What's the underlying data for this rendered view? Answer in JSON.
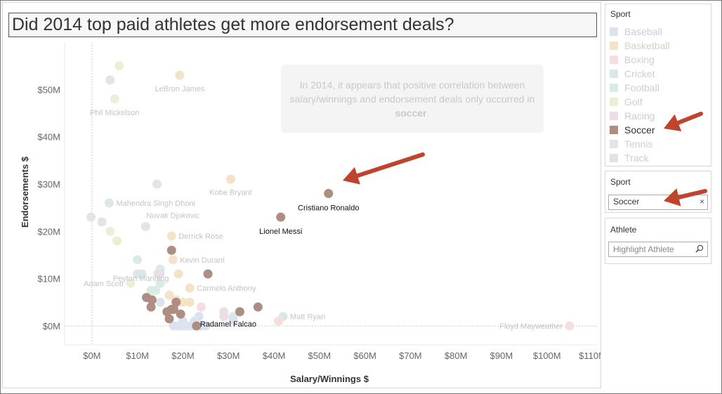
{
  "title": "Did 2014 top paid athletes get more endorsement deals?",
  "annotation": {
    "pre": "In 2014, it appears that positive correlation between salary/winnings and endorsement deals only occurred in ",
    "highlight": "soccer",
    "post": "."
  },
  "sport_legend": {
    "title": "Sport",
    "items": [
      {
        "label": "Baseball",
        "color": "#dce3ef",
        "text_color": "#c9ced6"
      },
      {
        "label": "Basketball",
        "color": "#f5e3c9",
        "text_color": "#d6d0c2"
      },
      {
        "label": "Boxing",
        "color": "#f6dede",
        "text_color": "#d6cccc"
      },
      {
        "label": "Cricket",
        "color": "#dde6e9",
        "text_color": "#c9d0d3"
      },
      {
        "label": "Football",
        "color": "#d8ebe4",
        "text_color": "#c6d3ce"
      },
      {
        "label": "Golf",
        "color": "#eaefd5",
        "text_color": "#cfd2c2"
      },
      {
        "label": "Racing",
        "color": "#ecdfe3",
        "text_color": "#d2c9cc"
      },
      {
        "label": "Soccer",
        "color": "#ae8d82",
        "text_color": "#333333"
      },
      {
        "label": "Tennis",
        "color": "#e6e3e2",
        "text_color": "#cfcfcf"
      },
      {
        "label": "Track",
        "color": "#e2e2e2",
        "text_color": "#cfcfcf"
      }
    ]
  },
  "sport_filter": {
    "title": "Sport",
    "value": "Soccer",
    "clear": "×"
  },
  "athlete_filter": {
    "title": "Athlete",
    "placeholder": "Highlight Athlete"
  },
  "arrow_color": "#c0432b",
  "chart_data": {
    "type": "scatter",
    "xlabel": "Salary/Winnings $",
    "ylabel": "Endorsements $",
    "xlim": [
      -6,
      111
    ],
    "ylim": [
      -4,
      60
    ],
    "x_ticks": [
      0,
      10,
      20,
      30,
      40,
      50,
      60,
      70,
      80,
      90,
      100,
      110
    ],
    "x_tick_labels": [
      "$0M",
      "$10M",
      "$20M",
      "$30M",
      "$40M",
      "$50M",
      "$60M",
      "$70M",
      "$80M",
      "$90M",
      "$100M",
      "$110M"
    ],
    "y_ticks": [
      0,
      10,
      20,
      30,
      40,
      50
    ],
    "y_tick_labels": [
      "$0M",
      "$10M",
      "$20M",
      "$30M",
      "$40M",
      "$50M"
    ],
    "highlight_color": "#ae8d82",
    "points": [
      {
        "x": 6.0,
        "y": 55.0,
        "sport": "Golf"
      },
      {
        "x": 4.0,
        "y": 52.0,
        "sport": "Tennis"
      },
      {
        "x": 19.3,
        "y": 53.0,
        "sport": "Basketball",
        "label": "LeBron James"
      },
      {
        "x": 5.0,
        "y": 48.0,
        "sport": "Golf",
        "label": "Phil Mickelson"
      },
      {
        "x": 14.3,
        "y": 30.0,
        "sport": "Tennis"
      },
      {
        "x": 30.5,
        "y": 31.0,
        "sport": "Basketball",
        "label": "Kobe Bryant"
      },
      {
        "x": 52.0,
        "y": 28.0,
        "sport": "Soccer",
        "label": "Cristiano Ronaldo"
      },
      {
        "x": 3.8,
        "y": 26.0,
        "sport": "Cricket",
        "label": "Mahendra Singh Dhoni"
      },
      {
        "x": -0.2,
        "y": 23.0,
        "sport": "Tennis"
      },
      {
        "x": 2.2,
        "y": 22.0,
        "sport": "Tennis"
      },
      {
        "x": 11.8,
        "y": 21.0,
        "sport": "Tennis",
        "label": "Novak Djokovic"
      },
      {
        "x": 41.5,
        "y": 23.0,
        "sport": "Soccer",
        "label": "Lionel Messi"
      },
      {
        "x": 4.0,
        "y": 20.0,
        "sport": "Golf"
      },
      {
        "x": 5.5,
        "y": 18.0,
        "sport": "Golf"
      },
      {
        "x": 17.5,
        "y": 19.0,
        "sport": "Basketball",
        "label": "Derrick Rose"
      },
      {
        "x": 17.5,
        "y": 16.0,
        "sport": "Soccer"
      },
      {
        "x": 17.8,
        "y": 14.0,
        "sport": "Basketball",
        "label": "Kevin Durant"
      },
      {
        "x": 10.0,
        "y": 14.0,
        "sport": "Football",
        "label": "Peyton Manning"
      },
      {
        "x": 25.5,
        "y": 11.0,
        "sport": "Soccer"
      },
      {
        "x": 15.0,
        "y": 12.0,
        "sport": "Football"
      },
      {
        "x": 15.0,
        "y": 11.0,
        "sport": "Baseball"
      },
      {
        "x": 19.0,
        "y": 11.0,
        "sport": "Basketball"
      },
      {
        "x": 10.0,
        "y": 11.0,
        "sport": "Cricket"
      },
      {
        "x": 11.0,
        "y": 11.0,
        "sport": "Cricket"
      },
      {
        "x": 14.5,
        "y": 11.0,
        "sport": "Racing"
      },
      {
        "x": 8.5,
        "y": 9.0,
        "sport": "Golf",
        "label": "Adam Scott"
      },
      {
        "x": 15.0,
        "y": 9.0,
        "sport": "Football"
      },
      {
        "x": 21.5,
        "y": 8.0,
        "sport": "Basketball",
        "label": "Carmelo Anthony"
      },
      {
        "x": 13.0,
        "y": 7.5,
        "sport": "Football"
      },
      {
        "x": 14.0,
        "y": 7.5,
        "sport": "Football"
      },
      {
        "x": 17.0,
        "y": 6.5,
        "sport": "Basketball"
      },
      {
        "x": 12.0,
        "y": 6.0,
        "sport": "Soccer"
      },
      {
        "x": 13.2,
        "y": 5.5,
        "sport": "Soccer"
      },
      {
        "x": 18.5,
        "y": 5.5,
        "sport": "Basketball"
      },
      {
        "x": 20.0,
        "y": 5.0,
        "sport": "Basketball"
      },
      {
        "x": 21.5,
        "y": 5.0,
        "sport": "Basketball"
      },
      {
        "x": 15.0,
        "y": 5.0,
        "sport": "Baseball"
      },
      {
        "x": 18.5,
        "y": 5.0,
        "sport": "Soccer"
      },
      {
        "x": 13.0,
        "y": 4.0,
        "sport": "Soccer"
      },
      {
        "x": 17.5,
        "y": 3.5,
        "sport": "Soccer"
      },
      {
        "x": 18.0,
        "y": 3.5,
        "sport": "Soccer"
      },
      {
        "x": 16.5,
        "y": 3.0,
        "sport": "Soccer"
      },
      {
        "x": 19.5,
        "y": 2.5,
        "sport": "Soccer"
      },
      {
        "x": 24.0,
        "y": 4.0,
        "sport": "Boxing"
      },
      {
        "x": 36.5,
        "y": 4.0,
        "sport": "Soccer"
      },
      {
        "x": 32.5,
        "y": 3.0,
        "sport": "Soccer"
      },
      {
        "x": 29.0,
        "y": 3.0,
        "sport": "Racing"
      },
      {
        "x": 29.0,
        "y": 2.0,
        "sport": "Racing"
      },
      {
        "x": 31.0,
        "y": 2.0,
        "sport": "Football"
      },
      {
        "x": 42.0,
        "y": 2.0,
        "sport": "Cricket",
        "label": "Matt Ryan"
      },
      {
        "x": 41.0,
        "y": 1.0,
        "sport": "Boxing"
      },
      {
        "x": 31.0,
        "y": 1.2,
        "sport": "Baseball"
      },
      {
        "x": 17.0,
        "y": 1.5,
        "sport": "Soccer"
      },
      {
        "x": 18.0,
        "y": 0.0,
        "sport": "Baseball"
      },
      {
        "x": 19.0,
        "y": 0.0,
        "sport": "Baseball"
      },
      {
        "x": 20.0,
        "y": 0.0,
        "sport": "Baseball"
      },
      {
        "x": 21.0,
        "y": 0.0,
        "sport": "Baseball"
      },
      {
        "x": 22.0,
        "y": 0.0,
        "sport": "Baseball"
      },
      {
        "x": 23.0,
        "y": 0.0,
        "sport": "Baseball"
      },
      {
        "x": 24.0,
        "y": 0.0,
        "sport": "Baseball"
      },
      {
        "x": 25.0,
        "y": 0.0,
        "sport": "Baseball"
      },
      {
        "x": 20.0,
        "y": 1.0,
        "sport": "Baseball"
      },
      {
        "x": 22.5,
        "y": 1.0,
        "sport": "Baseball"
      },
      {
        "x": 23.5,
        "y": 2.0,
        "sport": "Baseball"
      },
      {
        "x": 23.0,
        "y": 0.0,
        "sport": "Soccer",
        "label": "Radamel Falcao"
      },
      {
        "x": 105.0,
        "y": 0.0,
        "sport": "Boxing",
        "label": "Floyd Mayweather"
      }
    ]
  }
}
